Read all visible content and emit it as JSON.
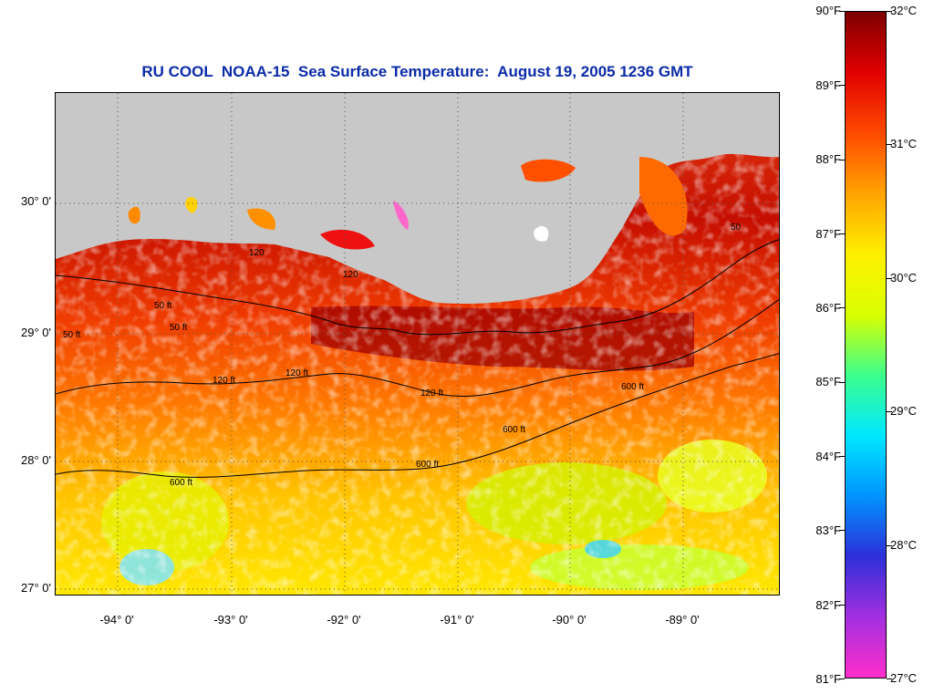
{
  "title": "RU COOL  NOAA-15  Sea Surface Temperature:  August 19, 2005 1236 GMT",
  "map": {
    "lat_labels": [
      "30° 0'",
      "29° 0'",
      "28° 0'",
      "27° 0'"
    ],
    "lon_labels": [
      "-94° 0'",
      "-93° 0'",
      "-92° 0'",
      "-91° 0'",
      "-90° 0'",
      "-89° 0'"
    ],
    "contour_labels": [
      "50 ft",
      "50 ft",
      "50 ft",
      "120 ft",
      "120 ft",
      "120",
      "120",
      "120 ft",
      "600 ft",
      "600 ft",
      "600 ft",
      "600 ft",
      "50"
    ],
    "colors": {
      "land": "#c8c8c8",
      "cloud": "#ffffff",
      "contour": "#000000"
    }
  },
  "colorbar": {
    "f_labels": [
      "90°F",
      "89°F",
      "88°F",
      "87°F",
      "86°F",
      "85°F",
      "84°F",
      "83°F",
      "82°F",
      "81°F"
    ],
    "c_labels": [
      "32°C",
      "31°C",
      "30°C",
      "29°C",
      "28°C",
      "27°C"
    ],
    "range_f": [
      81,
      90
    ],
    "range_c": [
      27,
      32
    ],
    "colors": [
      "#ff2ecb",
      "#a32fe0",
      "#2d2fd8",
      "#0094ff",
      "#00e8ff",
      "#3dff8c",
      "#d9ff00",
      "#fff000",
      "#ffa300",
      "#ff4a00",
      "#e10000",
      "#7d0000"
    ]
  }
}
